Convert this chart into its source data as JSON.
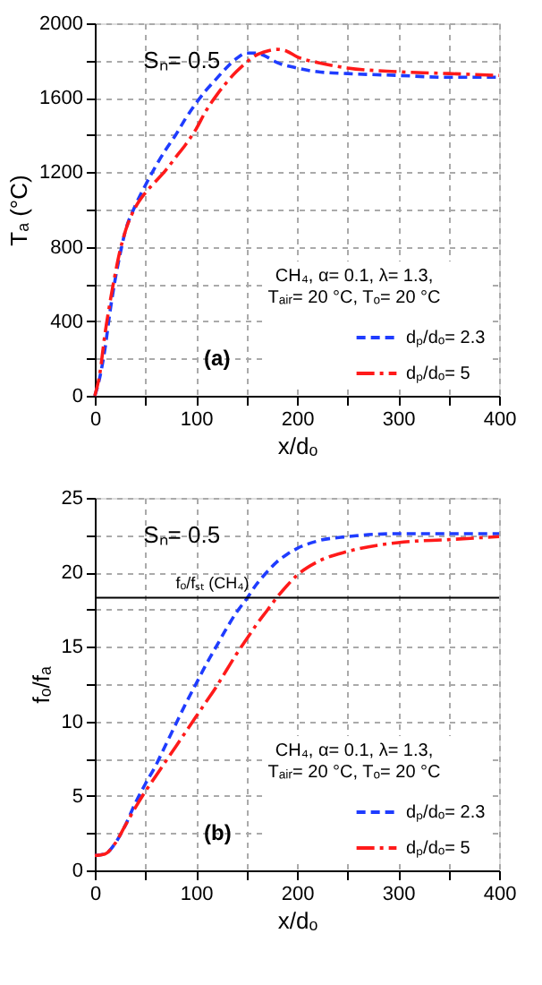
{
  "chart_data": [
    {
      "type": "line",
      "xlabel": "x/dₒ",
      "ylabel": "Tₐ (°C)",
      "legend_title": "CH₄, α= 0.1, λ= 1.3,\nTₐᵢᵣ= 20 °C, Tₒ= 20 °C",
      "legend": "bottom right",
      "grid": true,
      "marker": "none",
      "annotations": [
        "Sₙ= 0.5",
        "(a)"
      ],
      "xlim": [
        0,
        400
      ],
      "xticks": [
        0,
        {
          "value": 50,
          "label": null
        },
        100,
        {
          "value": 150,
          "label": null
        },
        200,
        {
          "value": 250,
          "label": null
        },
        300,
        {
          "value": 350,
          "label": null
        },
        400
      ],
      "ylim": [
        0,
        2000
      ],
      "yticks": [
        0,
        {
          "value": 200,
          "label": null
        },
        400,
        {
          "value": 600,
          "label": null
        },
        800,
        {
          "value": 1000,
          "label": null
        },
        1200,
        {
          "value": 1400,
          "label": null
        },
        1600,
        {
          "value": 1800,
          "label": null
        },
        2000
      ],
      "series": [
        {
          "name": "dₚ/dₒ= 2.3",
          "color": "#1f3cff",
          "line_style": "dashed",
          "x": [
            0,
            5,
            10,
            15,
            20,
            25,
            30,
            40,
            50,
            60,
            70,
            80,
            90,
            100,
            110,
            120,
            130,
            140,
            150,
            160,
            170,
            180,
            200,
            220,
            250,
            300,
            350,
            400
          ],
          "values": [
            0,
            100,
            250,
            450,
            620,
            760,
            880,
            1020,
            1130,
            1230,
            1320,
            1400,
            1490,
            1570,
            1640,
            1700,
            1760,
            1810,
            1840,
            1840,
            1820,
            1790,
            1760,
            1740,
            1730,
            1720,
            1710,
            1710
          ]
        },
        {
          "name": "dₚ/dₒ= 5",
          "color": "#ff1a1a",
          "line_style": "dashdot",
          "x": [
            0,
            5,
            10,
            15,
            20,
            25,
            30,
            40,
            50,
            60,
            70,
            80,
            90,
            100,
            110,
            120,
            130,
            140,
            150,
            160,
            170,
            180,
            190,
            200,
            220,
            250,
            300,
            350,
            400
          ],
          "values": [
            0,
            120,
            330,
            500,
            650,
            780,
            880,
            1010,
            1090,
            1150,
            1210,
            1280,
            1350,
            1430,
            1530,
            1610,
            1680,
            1740,
            1790,
            1830,
            1850,
            1860,
            1850,
            1820,
            1790,
            1760,
            1740,
            1730,
            1720
          ]
        }
      ]
    },
    {
      "type": "line",
      "xlabel": "x/dₒ",
      "ylabel": "fₒ/fₐ",
      "legend_title": "CH₄, α= 0.1, λ= 1.3,\nTₐᵢᵣ= 20 °C, Tₒ= 20 °C",
      "legend": "bottom right",
      "grid": true,
      "marker": "none",
      "annotations": [
        "Sₙ= 0.5",
        "(b)"
      ],
      "ref_lines": [
        {
          "axis": "y",
          "value": 18.3,
          "label": "fₒ/fₛₜ (CH₄)",
          "color": "#000000",
          "line_style": "solid"
        }
      ],
      "xlim": [
        0,
        400
      ],
      "xticks": [
        0,
        {
          "value": 50,
          "label": null
        },
        100,
        {
          "value": 150,
          "label": null
        },
        200,
        {
          "value": 250,
          "label": null
        },
        300,
        {
          "value": 350,
          "label": null
        },
        400
      ],
      "ylim": [
        0,
        25
      ],
      "yticks": [
        0,
        {
          "value": 2.5,
          "label": null
        },
        5,
        {
          "value": 7.5,
          "label": null
        },
        10,
        {
          "value": 12.5,
          "label": null
        },
        15,
        {
          "value": 17.5,
          "label": null
        },
        20,
        {
          "value": 22.5,
          "label": null
        },
        25
      ],
      "series": [
        {
          "name": "dₚ/dₒ= 2.3",
          "color": "#1f3cff",
          "line_style": "dashed",
          "x": [
            0,
            10,
            20,
            30,
            40,
            50,
            60,
            70,
            80,
            90,
            100,
            110,
            120,
            130,
            140,
            150,
            160,
            170,
            180,
            190,
            200,
            220,
            250,
            300,
            400
          ],
          "values": [
            1,
            1.1,
            1.8,
            3,
            4.5,
            5.8,
            7,
            8.4,
            9.8,
            11.2,
            12.5,
            13.8,
            15,
            16.2,
            17.3,
            18.2,
            19.2,
            20,
            20.7,
            21.2,
            21.6,
            22.1,
            22.4,
            22.6,
            22.6
          ]
        },
        {
          "name": "dₚ/dₒ= 5",
          "color": "#ff1a1a",
          "line_style": "dashdot",
          "x": [
            0,
            10,
            20,
            30,
            40,
            50,
            60,
            70,
            80,
            90,
            100,
            110,
            120,
            130,
            140,
            150,
            160,
            170,
            180,
            190,
            200,
            220,
            250,
            300,
            350,
            400
          ],
          "values": [
            1,
            1.1,
            1.8,
            3,
            4.2,
            5.3,
            6.3,
            7.3,
            8.3,
            9.3,
            10.3,
            11.3,
            12.3,
            13.4,
            14.5,
            15.5,
            16.5,
            17.4,
            18.3,
            19.1,
            19.8,
            20.7,
            21.4,
            22,
            22.2,
            22.4
          ]
        }
      ]
    }
  ]
}
